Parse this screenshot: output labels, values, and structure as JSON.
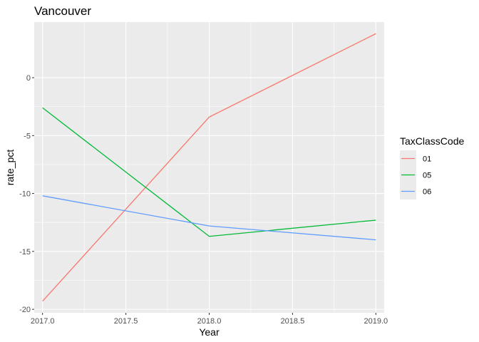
{
  "chart_data": {
    "type": "line",
    "title": "Vancouver",
    "xlabel": "Year",
    "ylabel": "rate_pct",
    "x": [
      2017,
      2018,
      2019
    ],
    "xlim": [
      2016.95,
      2019.05
    ],
    "ylim": [
      -20.3,
      4.8
    ],
    "xticks": [
      2017,
      2017.5,
      2018,
      2018.5,
      2019
    ],
    "xtick_labels": [
      "2017.0",
      "2017.5",
      "2018.0",
      "2018.5",
      "2019.0"
    ],
    "yticks": [
      -20,
      -15,
      -10,
      -5,
      0
    ],
    "ytick_labels": [
      "-20",
      "-15",
      "-10",
      "-5",
      "0"
    ],
    "grid": true,
    "legend": {
      "title": "TaxClassCode",
      "placement": "right"
    },
    "series": [
      {
        "name": "01",
        "color": "#F8766D",
        "values": [
          -19.3,
          -3.4,
          3.8
        ]
      },
      {
        "name": "05",
        "color": "#00BA38",
        "values": [
          -2.6,
          -13.7,
          -12.3
        ]
      },
      {
        "name": "06",
        "color": "#619CFF",
        "values": [
          -10.2,
          -12.8,
          -14.0
        ]
      }
    ]
  }
}
